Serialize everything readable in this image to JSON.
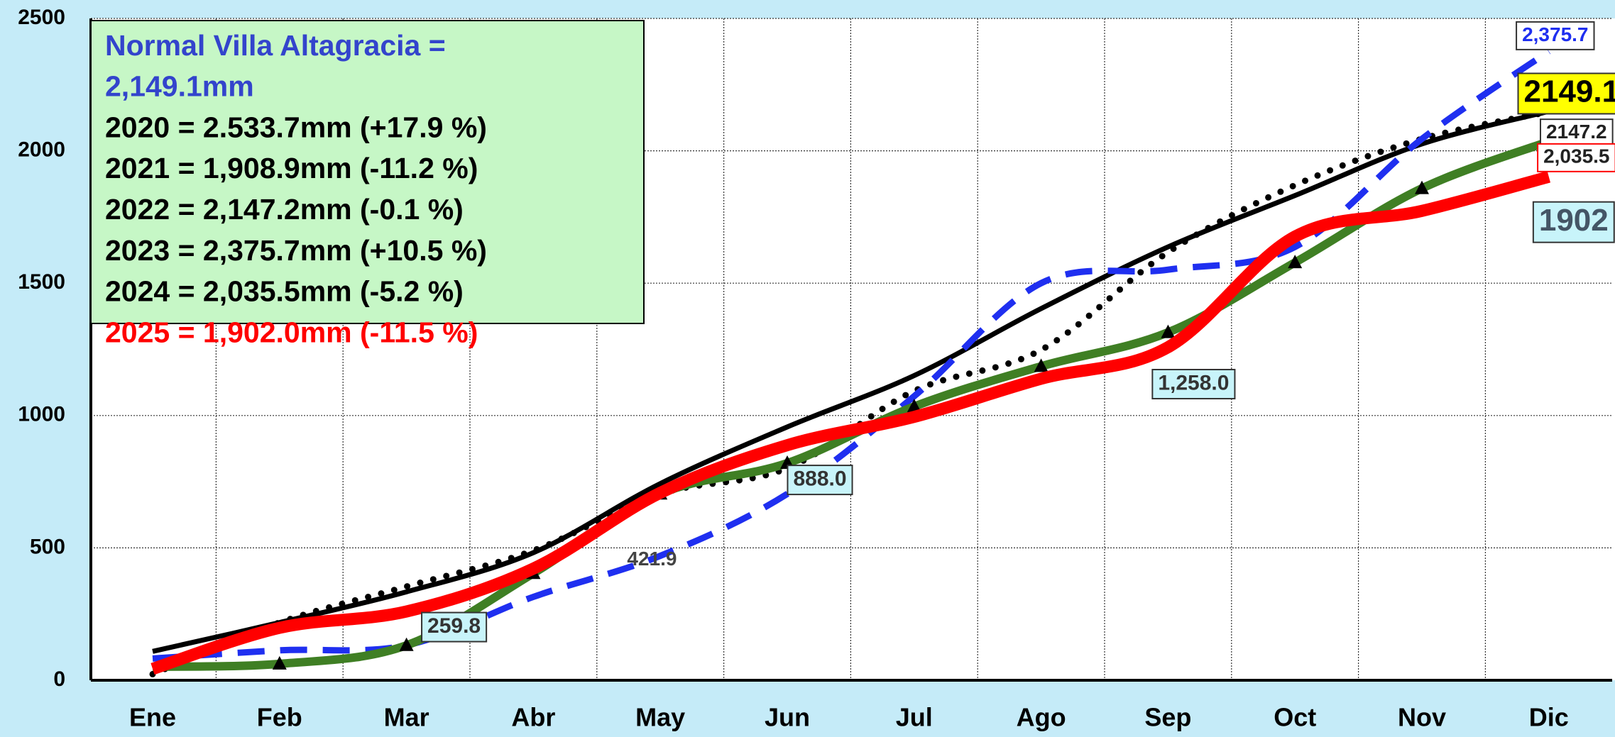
{
  "chart_data": {
    "type": "line",
    "categories": [
      "Ene",
      "Feb",
      "Mar",
      "Abr",
      "May",
      "Jun",
      "Jul",
      "Ago",
      "Sep",
      "Oct",
      "Nov",
      "Dic"
    ],
    "ylim": [
      0,
      2500
    ],
    "yticks": [
      0,
      500,
      1000,
      1500,
      2000,
      2500
    ],
    "grid": true,
    "text_box": [
      "Normal Villa Altagracia =",
      "2,149.1mm",
      "2020 = 2.533.7mm (+17.9 %)",
      "2021 = 1,908.9mm (-11.2 %)",
      "2022 = 2,147.2mm (-0.1 %)",
      "2023 = 2,375.7mm (+10.5 %)",
      "2024 = 2,035.5mm (-5.2 %)",
      "2025 = 1,902.0mm (-11.5 %)"
    ],
    "series": [
      {
        "color": "#000000",
        "style": "solid",
        "values": [
          109,
          218,
          334,
          482,
          743,
          957,
          1151,
          1404,
          1637,
          1831,
          2026,
          2149.1
        ],
        "value_labels": [
          null,
          null,
          null,
          null,
          null,
          null,
          null,
          null,
          null,
          null,
          null,
          "2149.1"
        ]
      },
      {
        "color": "#000000",
        "style": "dotted",
        "values": [
          23,
          218,
          354,
          490,
          704,
          801,
          1093,
          1248,
          1617,
          1870,
          2045,
          2147.2
        ],
        "value_labels": [
          null,
          null,
          null,
          null,
          null,
          null,
          null,
          null,
          null,
          null,
          null,
          "2147.2"
        ]
      },
      {
        "color": "#1f2ff0",
        "style": "dashed",
        "values": [
          82,
          113,
          132,
          315,
          470,
          704,
          1073,
          1500,
          1551,
          1637,
          2045,
          2375.7
        ],
        "value_labels": [
          null,
          null,
          null,
          null,
          null,
          null,
          null,
          null,
          null,
          null,
          null,
          "2,375.7"
        ]
      },
      {
        "color": "#3f7f24",
        "style": "triangles",
        "values": [
          51,
          62,
          132,
          404,
          704,
          820,
          1034,
          1186,
          1314,
          1578,
          1858,
          2035.5
        ],
        "value_labels": [
          null,
          null,
          null,
          null,
          null,
          null,
          null,
          null,
          null,
          null,
          null,
          "2,035.5"
        ]
      },
      {
        "color": "#ff0000",
        "style": "thick",
        "values": [
          43,
          198,
          259.8,
          421.9,
          708,
          888,
          995,
          1139,
          1258,
          1676,
          1773,
          1902
        ],
        "value_labels": [
          null,
          null,
          "259.8",
          "421.9",
          null,
          "888.0",
          null,
          null,
          "1,258.0",
          null,
          null,
          "1902"
        ]
      }
    ]
  }
}
